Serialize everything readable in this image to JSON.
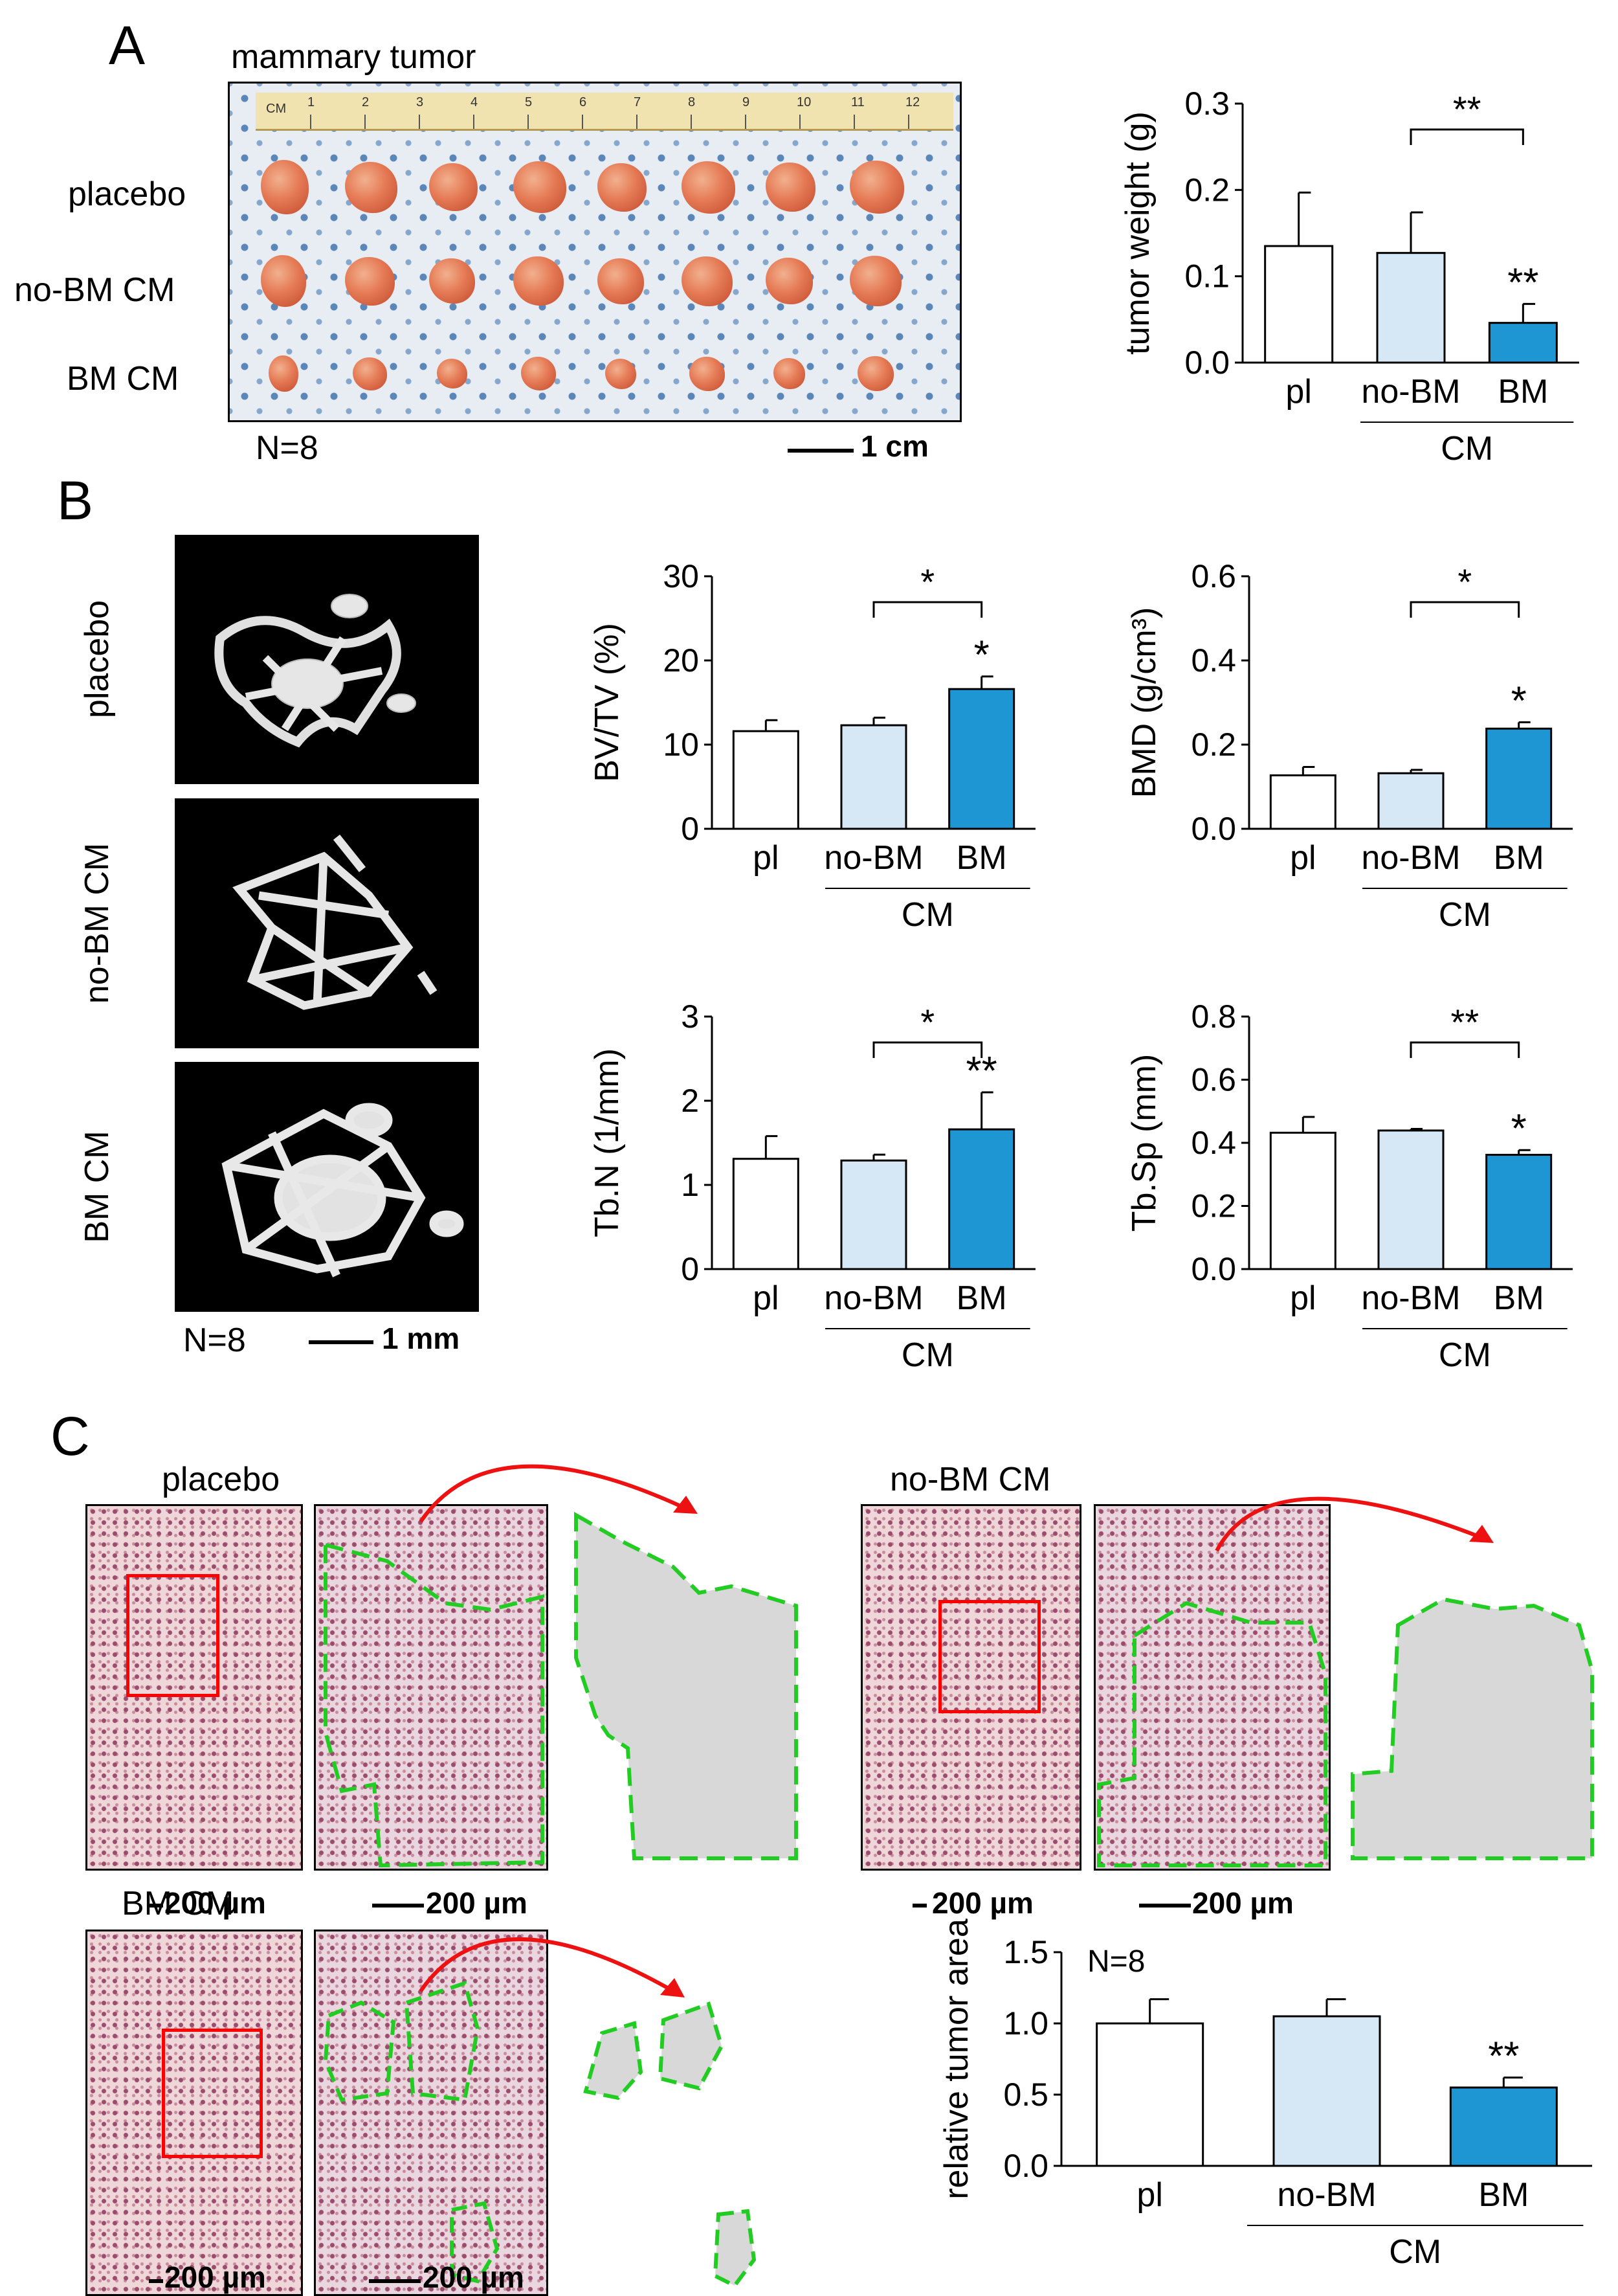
{
  "panel_a": {
    "letter": "A",
    "photo_title": "mammary tumor",
    "row_labels": [
      "placebo",
      "no-BM CM",
      "BM CM"
    ],
    "n_label": "N=8",
    "scale_label": "1 cm",
    "ruler_label": "CM",
    "ruler_numbers": [
      "1",
      "2",
      "3",
      "4",
      "5",
      "6",
      "7",
      "8",
      "9",
      "10",
      "11",
      "12"
    ]
  },
  "panel_b": {
    "letter": "B",
    "image_labels": [
      "placebo",
      "no-BM CM",
      "BM CM"
    ],
    "n_label": "N=8",
    "scale_label": "1 mm"
  },
  "panel_c": {
    "letter": "C",
    "group_labels": [
      "placebo",
      "no-BM CM",
      "BM CM"
    ],
    "scale_label": "200 µm"
  },
  "colors": {
    "placebo": "#ffffff",
    "no_bm": "#d6e7f6",
    "bm": "#1f96d4",
    "box": "#ff0000",
    "outline": "#22cc22",
    "arrow": "#ee1111"
  },
  "chart_data": [
    {
      "id": "tumor-weight",
      "type": "bar",
      "categories": [
        "pl",
        "no-BM",
        "BM"
      ],
      "group_label": "CM",
      "values": [
        0.135,
        0.127,
        0.046
      ],
      "errors": [
        0.062,
        0.047,
        0.022
      ],
      "ylabel": "tumor weight (g)",
      "ylim": [
        0,
        0.3
      ],
      "yticks": [
        "0.0",
        "0.1",
        "0.2",
        "0.3"
      ],
      "bar_sig": [
        "",
        "",
        "**"
      ],
      "bracket_sig": "**"
    },
    {
      "id": "bv-tv",
      "type": "bar",
      "categories": [
        "pl",
        "no-BM",
        "BM"
      ],
      "group_label": "CM",
      "values": [
        11.6,
        12.3,
        16.6
      ],
      "errors": [
        1.3,
        0.9,
        1.5
      ],
      "ylabel": "BV/TV (%)",
      "ylim": [
        0,
        30
      ],
      "yticks": [
        "0",
        "10",
        "20",
        "30"
      ],
      "bar_sig": [
        "",
        "",
        "*"
      ],
      "bracket_sig": "*"
    },
    {
      "id": "bmd",
      "type": "bar",
      "categories": [
        "pl",
        "no-BM",
        "BM"
      ],
      "group_label": "CM",
      "values": [
        0.127,
        0.132,
        0.238
      ],
      "errors": [
        0.02,
        0.008,
        0.015
      ],
      "ylabel": "BMD (g/cm³)",
      "ylim": [
        0,
        0.6
      ],
      "yticks": [
        "0.0",
        "0.2",
        "0.4",
        "0.6"
      ],
      "bar_sig": [
        "",
        "",
        "*"
      ],
      "bracket_sig": "*"
    },
    {
      "id": "tb-n",
      "type": "bar",
      "categories": [
        "pl",
        "no-BM",
        "BM"
      ],
      "group_label": "CM",
      "values": [
        1.31,
        1.29,
        1.66
      ],
      "errors": [
        0.27,
        0.07,
        0.44
      ],
      "ylabel": "Tb.N (1/mm)",
      "ylim": [
        0,
        3
      ],
      "yticks": [
        "0",
        "1",
        "2",
        "3"
      ],
      "bar_sig": [
        "",
        "",
        "**"
      ],
      "bracket_sig": "*"
    },
    {
      "id": "tb-sp",
      "type": "bar",
      "categories": [
        "pl",
        "no-BM",
        "BM"
      ],
      "group_label": "CM",
      "values": [
        0.432,
        0.439,
        0.362
      ],
      "errors": [
        0.05,
        0.005,
        0.015
      ],
      "ylabel": "Tb.Sp (mm)",
      "ylim": [
        0,
        0.8
      ],
      "yticks": [
        "0.0",
        "0.2",
        "0.4",
        "0.6",
        "0.8"
      ],
      "bar_sig": [
        "",
        "",
        "*"
      ],
      "bracket_sig": "**"
    },
    {
      "id": "tumor-area",
      "type": "bar",
      "categories": [
        "pl",
        "no-BM",
        "BM"
      ],
      "group_label": "CM",
      "values": [
        1.0,
        1.05,
        0.55
      ],
      "errors": [
        0.17,
        0.12,
        0.07
      ],
      "ylabel": "relative tumor area",
      "ylim": [
        0,
        1.5
      ],
      "yticks": [
        "0.0",
        "0.5",
        "1.0",
        "1.5"
      ],
      "bar_sig": [
        "",
        "",
        "**"
      ],
      "bracket_sig": "",
      "annotation": "N=8"
    }
  ]
}
